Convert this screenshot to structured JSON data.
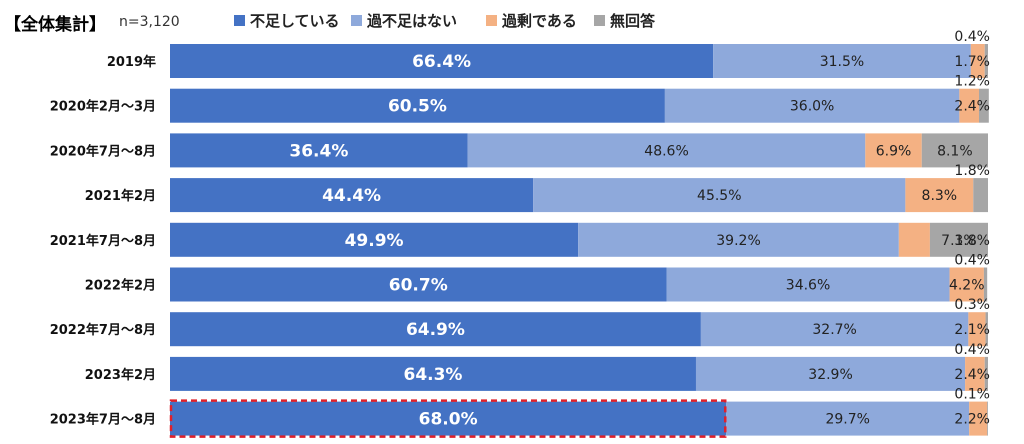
{
  "header": {
    "title": "【全体集計】",
    "n": "n=3,120"
  },
  "colors": {
    "shortage": "#4472C4",
    "not_shortage": "#8EA9DB",
    "surplus": "#F4B183",
    "no_answer": "#A6A6A6",
    "highlight": "#E0202A"
  },
  "chart_data": {
    "type": "bar",
    "orientation": "horizontal",
    "stacked": "percent",
    "categories": [
      "2019年",
      "2020年2月～3月",
      "2020年7月～8月",
      "2021年2月",
      "2021年7月～8月",
      "2022年2月",
      "2022年7月～8月",
      "2023年2月",
      "2023年7月～8月"
    ],
    "series": [
      {
        "name": "不足している",
        "values": [
          66.4,
          60.5,
          36.4,
          44.4,
          49.9,
          60.7,
          64.9,
          64.3,
          68.0
        ],
        "labels": [
          "66.4%",
          "60.5%",
          "36.4%",
          "44.4%",
          "49.9%",
          "60.7%",
          "64.9%",
          "64.3%",
          "68.0%"
        ]
      },
      {
        "name": "過不足はない",
        "values": [
          31.5,
          36.0,
          48.6,
          45.5,
          39.2,
          34.6,
          32.7,
          32.9,
          29.7
        ],
        "labels": [
          "31.5%",
          "36.0%",
          "48.6%",
          "45.5%",
          "39.2%",
          "34.6%",
          "32.7%",
          "32.9%",
          "29.7%"
        ]
      },
      {
        "name": "過剰である",
        "values": [
          1.7,
          2.4,
          6.9,
          8.3,
          3.8,
          4.2,
          2.1,
          2.4,
          2.2
        ],
        "labels": [
          "1.7%",
          "2.4%",
          "6.9%",
          "8.3%",
          "3.8%",
          "4.2%",
          "2.1%",
          "2.4%",
          "2.2%"
        ]
      },
      {
        "name": "無回答",
        "values": [
          0.4,
          1.2,
          8.1,
          1.8,
          7.1,
          0.4,
          0.3,
          0.4,
          0.1
        ],
        "labels": [
          "0.4%",
          "1.2%",
          "8.1%",
          "1.8%",
          "7.1%",
          "0.4%",
          "0.3%",
          "0.4%",
          "0.1%"
        ]
      }
    ],
    "xlim": [
      0,
      100
    ],
    "legend_position": "top",
    "highlighted_category": "2023年7月～8月"
  }
}
